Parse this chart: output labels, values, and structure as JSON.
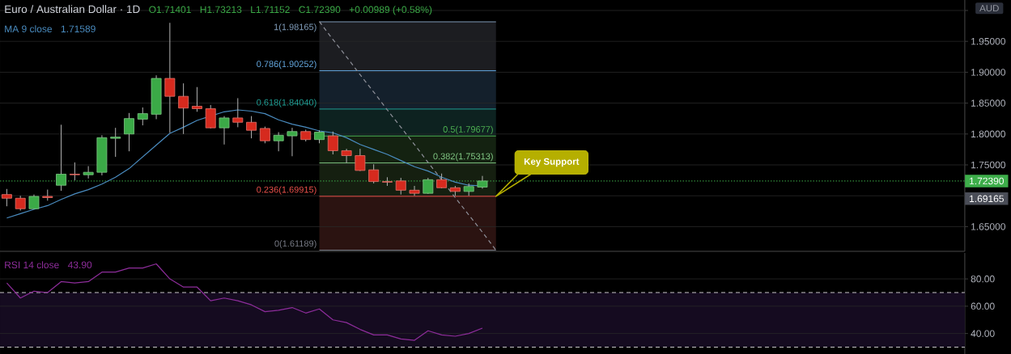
{
  "chart_data": [
    {
      "type": "candlestick",
      "title": "Euro / Australian Dollar · 1D",
      "ylabel": "AUD",
      "categories": [
        null,
        null,
        null,
        null,
        null,
        null,
        null,
        null,
        null,
        null,
        null,
        null,
        null,
        null,
        null,
        null,
        null,
        null,
        null,
        null,
        null,
        null,
        null,
        null,
        null,
        null,
        null,
        null,
        null,
        null,
        null,
        null,
        null,
        null,
        null,
        null,
        null,
        null,
        null,
        null,
        null,
        null,
        null,
        null,
        null,
        null,
        null,
        null,
        null,
        null,
        null,
        null,
        null,
        null,
        null,
        null,
        null,
        null,
        null,
        null,
        null,
        null,
        null,
        null,
        null,
        null,
        null,
        null,
        null,
        null,
        null
      ],
      "ohlc": [
        [
          1.702,
          1.711,
          1.683,
          1.696
        ],
        [
          1.696,
          1.7,
          1.676,
          1.679
        ],
        [
          1.679,
          1.702,
          1.678,
          1.699
        ],
        [
          1.699,
          1.71,
          1.692,
          1.697
        ],
        [
          1.717,
          1.815,
          1.708,
          1.735
        ],
        [
          1.735,
          1.754,
          1.725,
          1.734
        ],
        [
          1.734,
          1.748,
          1.728,
          1.738
        ],
        [
          1.738,
          1.798,
          1.733,
          1.794
        ],
        [
          1.793,
          1.81,
          1.763,
          1.795
        ],
        [
          1.8,
          1.834,
          1.772,
          1.825
        ],
        [
          1.824,
          1.843,
          1.814,
          1.833
        ],
        [
          1.832,
          1.895,
          1.824,
          1.89
        ],
        [
          1.89,
          1.98,
          1.802,
          1.861
        ],
        [
          1.861,
          1.882,
          1.8,
          1.842
        ],
        [
          1.845,
          1.876,
          1.836,
          1.841
        ],
        [
          1.841,
          1.847,
          1.809,
          1.81
        ],
        [
          1.81,
          1.829,
          1.783,
          1.826
        ],
        [
          1.826,
          1.858,
          1.811,
          1.819
        ],
        [
          1.819,
          1.829,
          1.793,
          1.806
        ],
        [
          1.809,
          1.812,
          1.785,
          1.789
        ],
        [
          1.789,
          1.803,
          1.772,
          1.798
        ],
        [
          1.797,
          1.81,
          1.764,
          1.804
        ],
        [
          1.804,
          1.807,
          1.788,
          1.791
        ],
        [
          1.791,
          1.806,
          1.785,
          1.803
        ],
        [
          1.797,
          1.804,
          1.767,
          1.773
        ],
        [
          1.773,
          1.776,
          1.753,
          1.765
        ],
        [
          1.765,
          1.776,
          1.74,
          1.741
        ],
        [
          1.742,
          1.751,
          1.72,
          1.723
        ],
        [
          1.723,
          1.73,
          1.716,
          1.722
        ],
        [
          1.724,
          1.729,
          1.702,
          1.709
        ],
        [
          1.709,
          1.716,
          1.7,
          1.704
        ],
        [
          1.704,
          1.729,
          1.703,
          1.726
        ],
        [
          1.726,
          1.736,
          1.712,
          1.713
        ],
        [
          1.713,
          1.716,
          1.7,
          1.707
        ],
        [
          1.707,
          1.72,
          1.7,
          1.715
        ],
        [
          1.71401,
          1.73213,
          1.71152,
          1.7239
        ],
        null,
        null,
        null,
        null,
        null,
        null,
        null,
        null,
        null,
        null,
        null,
        null,
        null,
        null,
        null,
        null,
        null,
        null,
        null,
        null,
        null,
        null,
        null,
        null,
        null,
        null,
        null,
        null,
        null,
        null,
        null,
        null,
        null,
        null,
        null
      ],
      "colors": [
        "#D62A1E",
        "#D62A1E",
        "#3BAA47",
        "#D62A1E",
        "#3BAA47",
        "#D62A1E",
        "#3BAA47",
        "#3BAA47",
        "#3BAA47",
        "#3BAA47",
        "#3BAA47",
        "#3BAA47",
        "#D62A1E",
        "#D62A1E",
        "#D62A1E",
        "#D62A1E",
        "#3BAA47",
        "#D62A1E",
        "#D62A1E",
        "#D62A1E",
        "#3BAA47",
        "#3BAA47",
        "#D62A1E",
        "#3BAA47",
        "#D62A1E",
        "#D62A1E",
        "#D62A1E",
        "#D62A1E",
        "#D62A1E",
        "#D62A1E",
        "#D62A1E",
        "#3BAA47",
        "#D62A1E",
        "#D62A1E",
        "#3BAA47",
        "#3BAA47",
        null,
        null,
        null,
        null,
        null,
        null,
        null,
        null,
        null,
        null,
        null,
        null,
        null,
        null,
        null,
        null,
        null,
        null,
        null,
        null,
        null,
        null,
        null,
        null,
        null,
        null,
        null,
        null,
        null,
        null,
        null,
        null,
        null,
        null,
        null
      ],
      "series": [
        {
          "name": "MA 9 close",
          "type": "line",
          "color": "#4A8CC0",
          "values": [
            1.664,
            1.671,
            1.678,
            1.684,
            1.694,
            1.703,
            1.71,
            1.719,
            1.73,
            1.744,
            1.763,
            1.782,
            1.801,
            1.811,
            1.822,
            null,
            1.836,
            1.839,
            1.837,
            1.833,
            1.823,
            1.816,
            1.811,
            1.805,
            1.802,
            1.794,
            1.783,
            1.775,
            1.767,
            1.757,
            1.747,
            1.74,
            1.73,
            1.722,
            1.717,
            1.716,
            null,
            null,
            null,
            null,
            null,
            null,
            null,
            null,
            null,
            null,
            null,
            null,
            null,
            null,
            null,
            null,
            null,
            null,
            null,
            null,
            null,
            null,
            null,
            null,
            null,
            null,
            null,
            null,
            null,
            null,
            null,
            null,
            null,
            null,
            null
          ]
        },
        {
          "type": "line",
          "color": "#8E9099",
          "line_style": "dashed",
          "values": [
            null,
            null,
            null,
            null,
            null,
            null,
            null,
            null,
            null,
            null,
            null,
            null,
            null,
            null,
            null,
            null,
            null,
            null,
            null,
            null,
            null,
            null,
            null,
            1.982,
            1.953,
            1.925,
            1.896,
            1.868,
            1.839,
            1.811,
            1.783,
            1.754,
            1.726,
            1.697,
            1.669,
            1.641,
            1.612,
            null,
            null,
            null,
            null,
            null,
            null,
            null,
            null,
            null,
            null,
            null,
            null,
            null,
            null,
            null,
            null,
            null,
            null,
            null,
            null,
            null,
            null,
            null,
            null,
            null,
            null,
            null,
            null,
            null,
            null,
            null,
            null,
            null,
            null
          ]
        }
      ],
      "ylim": [
        1.61,
        2.017
      ],
      "yticks": [
        {
          "value": 1.65,
          "label": "1.65000"
        },
        {
          "value": 1.7,
          "label": null
        },
        {
          "value": 1.75,
          "label": "1.75000"
        },
        {
          "value": 1.8,
          "label": "1.80000"
        },
        {
          "value": 1.85,
          "label": "1.85000"
        },
        {
          "value": 1.9,
          "label": "1.90000"
        },
        {
          "value": 1.95,
          "label": "1.95000"
        },
        {
          "value": 2.0,
          "label": null
        }
      ],
      "tick_labels": "y",
      "grid": "y",
      "ref_lines": [
        {
          "axis": "y",
          "value": 1.98165,
          "label": "1(1.98165)",
          "color": "#7F9BB8"
        },
        {
          "axis": "y",
          "value": 1.90252,
          "label": "0.786(1.90252)",
          "color": "#64A8E0"
        },
        {
          "axis": "y",
          "value": 1.8404,
          "label": "0.618(1.84040)",
          "color": "#1F9E94"
        },
        {
          "axis": "y",
          "value": 1.79677,
          "label": "0.5(1.79677)",
          "color": "#4CAF50"
        },
        {
          "axis": "y",
          "value": 1.75313,
          "label": "0.382(1.75313)",
          "color": "#81C784"
        },
        {
          "axis": "y",
          "value": 1.69915,
          "label": "0.236(1.69915)",
          "color": "#E8504A"
        },
        {
          "axis": "y",
          "value": 1.61189,
          "label": "0(1.61189)",
          "color": "#787B86"
        },
        {
          "axis": "y",
          "value": 1.7239,
          "label": "1.72390",
          "color": "#3DAE4A",
          "line_style": "dotted"
        }
      ],
      "bands": [
        {
          "axis": "y",
          "from": 1.90252,
          "to": 1.98165,
          "color": "#1C1D21"
        },
        {
          "axis": "y",
          "from": 1.8404,
          "to": 1.90252,
          "color": "#14202C"
        },
        {
          "axis": "y",
          "from": 1.79677,
          "to": 1.8404,
          "color": "#0D2220"
        },
        {
          "axis": "y",
          "from": 1.75313,
          "to": 1.79677,
          "color": "#142211"
        },
        {
          "axis": "y",
          "from": 1.69915,
          "to": 1.75313,
          "color": "#151F10"
        },
        {
          "axis": "y",
          "from": 1.61189,
          "to": 1.69915,
          "color": "#2B1311"
        }
      ],
      "annotations": [
        "O1.71401",
        "H1.73213",
        "L1.71152",
        "C1.72390",
        "+0.00989 (+0.58%)",
        "1.71589",
        "Key Support",
        "1.69165"
      ]
    },
    {
      "type": "line",
      "categories": [
        null,
        null,
        null,
        null,
        null,
        null,
        null,
        null,
        null,
        null,
        null,
        null,
        null,
        null,
        null,
        null,
        null,
        null,
        null,
        null,
        null,
        null,
        null,
        null,
        null,
        null,
        null,
        null,
        null,
        null,
        null,
        null,
        null,
        null,
        null,
        null,
        null,
        null,
        null,
        null,
        null,
        null,
        null,
        null,
        null,
        null,
        null,
        null,
        null,
        null,
        null,
        null,
        null,
        null,
        null,
        null,
        null,
        null,
        null,
        null,
        null,
        null,
        null,
        null,
        null,
        null,
        null,
        null,
        null,
        null,
        null
      ],
      "series": [
        {
          "name": "RSI 14 close",
          "color": "#8E2D9B",
          "values": [
            77,
            66,
            71,
            70,
            78,
            77,
            78,
            85,
            85,
            88,
            88,
            91,
            80,
            74,
            74,
            64,
            66,
            64,
            61,
            56,
            57,
            59,
            55,
            58,
            50,
            48,
            43,
            39,
            39,
            36,
            35,
            42,
            39,
            38,
            40,
            43.9,
            null,
            null,
            null,
            null,
            null,
            null,
            null,
            null,
            null,
            null,
            null,
            null,
            null,
            null,
            null,
            null,
            null,
            null,
            null,
            null,
            null,
            null,
            null,
            null,
            null,
            null,
            null,
            null,
            null,
            null,
            null,
            null,
            null,
            null,
            null
          ]
        }
      ],
      "ylim": [
        25,
        99
      ],
      "yticks": [
        {
          "value": 40,
          "label": "40.00"
        },
        {
          "value": 60,
          "label": "60.00"
        },
        {
          "value": 80,
          "label": "80.00"
        }
      ],
      "tick_labels": "y",
      "grid": "y",
      "ref_lines": [
        {
          "axis": "y",
          "value": 70,
          "color": "#C8C8C8",
          "line_style": "dashed"
        },
        {
          "axis": "y",
          "value": 30,
          "color": "#C8C8C8",
          "line_style": "dashed"
        }
      ],
      "bands": [
        {
          "axis": "y",
          "from": 30,
          "to": 70,
          "color": "#150B20"
        }
      ],
      "annotations": [
        "43.90"
      ]
    }
  ]
}
